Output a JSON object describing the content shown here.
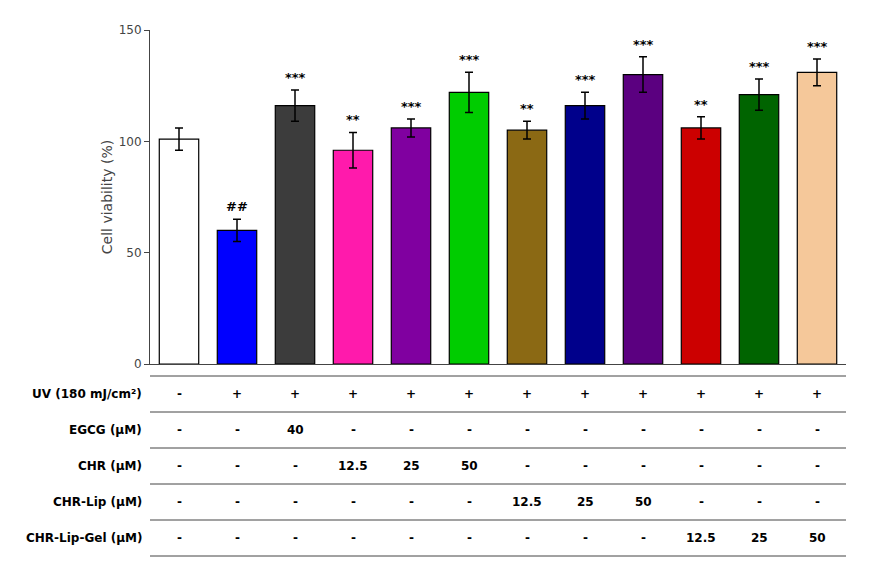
{
  "chart_data": {
    "type": "bar",
    "ylabel": "Cell viability (%)",
    "categories": [
      null,
      null,
      null,
      null,
      null,
      null,
      null,
      null,
      null,
      null,
      null,
      null
    ],
    "values": [
      101,
      60,
      116,
      96,
      106,
      122,
      105,
      116,
      130,
      106,
      121,
      131
    ],
    "errors": [
      5,
      5,
      7,
      8,
      4,
      9,
      4,
      6,
      8,
      5,
      7,
      6
    ],
    "colors": [
      "#ffffff",
      "#0000ff",
      "#3c3c3c",
      "#ff1aac",
      "#8000a0",
      "#00cc00",
      "#8b6914",
      "#00008b",
      "#5b0080",
      "#cc0000",
      "#006400",
      "#f5c89a"
    ],
    "significance": [
      null,
      "##",
      "***",
      "**",
      "***",
      "***",
      "**",
      "***",
      "***",
      "**",
      "***",
      "***"
    ],
    "ylim": [
      0,
      150
    ],
    "yticks": [
      0,
      50,
      100,
      150
    ],
    "grid": false,
    "tick_labels": "y",
    "table": [
      {
        "label": "UV (180 mJ/cm²)",
        "values": [
          "-",
          "+",
          "+",
          "+",
          "+",
          "+",
          "+",
          "+",
          "+",
          "+",
          "+",
          "+"
        ]
      },
      {
        "label": "EGCG (μM)",
        "values": [
          "-",
          "-",
          "40",
          "-",
          "-",
          "-",
          "-",
          "-",
          "-",
          "-",
          "-",
          "-"
        ]
      },
      {
        "label": "CHR (μM)",
        "values": [
          "-",
          "-",
          "-",
          "12.5",
          "25",
          "50",
          "-",
          "-",
          "-",
          "-",
          "-",
          "-"
        ]
      },
      {
        "label": "CHR-Lip (μM)",
        "values": [
          "-",
          "-",
          "-",
          "-",
          "-",
          "-",
          "12.5",
          "25",
          "50",
          "-",
          "-",
          "-"
        ]
      },
      {
        "label": "CHR-Lip-Gel (μM)",
        "values": [
          "-",
          "-",
          "-",
          "-",
          "-",
          "-",
          "-",
          "-",
          "-",
          "12.5",
          "25",
          "50"
        ]
      }
    ]
  }
}
